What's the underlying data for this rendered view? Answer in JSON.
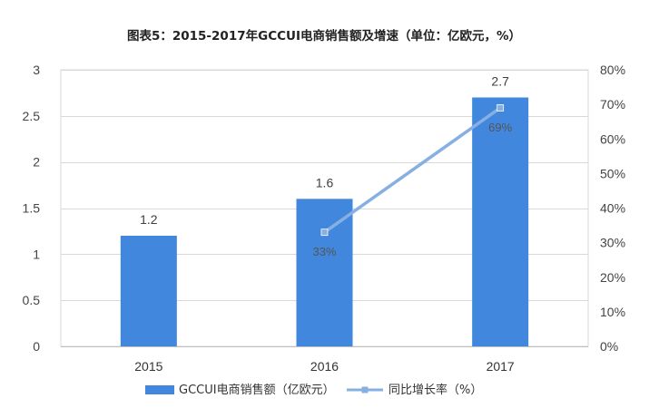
{
  "chart_data": {
    "type": "bar",
    "title": "图表5：2015-2017年GCCUI电商销售额及增速（单位：亿欧元，%）",
    "categories": [
      "2015",
      "2016",
      "2017"
    ],
    "series": [
      {
        "name": "GCCUI电商销售额（亿欧元）",
        "type": "bar",
        "axis": "left",
        "values": [
          1.2,
          1.6,
          2.7
        ],
        "labels": [
          "1.2",
          "1.6",
          "2.7"
        ],
        "color": "#4187dd"
      },
      {
        "name": "同比增长率（%）",
        "type": "line",
        "axis": "right",
        "values": [
          null,
          33,
          69
        ],
        "labels": [
          "",
          "33%",
          "69%"
        ],
        "color": "#86afe2"
      }
    ],
    "y_left": {
      "ylim": [
        0,
        3
      ],
      "ticks": [
        "0",
        "0.5",
        "1",
        "1.5",
        "2",
        "2.5",
        "3"
      ],
      "tick_values": [
        0,
        0.5,
        1,
        1.5,
        2,
        2.5,
        3
      ]
    },
    "y_right": {
      "ylim": [
        0,
        80
      ],
      "ticks": [
        "0%",
        "10%",
        "20%",
        "30%",
        "40%",
        "50%",
        "60%",
        "70%",
        "80%"
      ],
      "tick_values": [
        0,
        10,
        20,
        30,
        40,
        50,
        60,
        70,
        80
      ]
    },
    "grid": true,
    "legend_position": "bottom"
  }
}
